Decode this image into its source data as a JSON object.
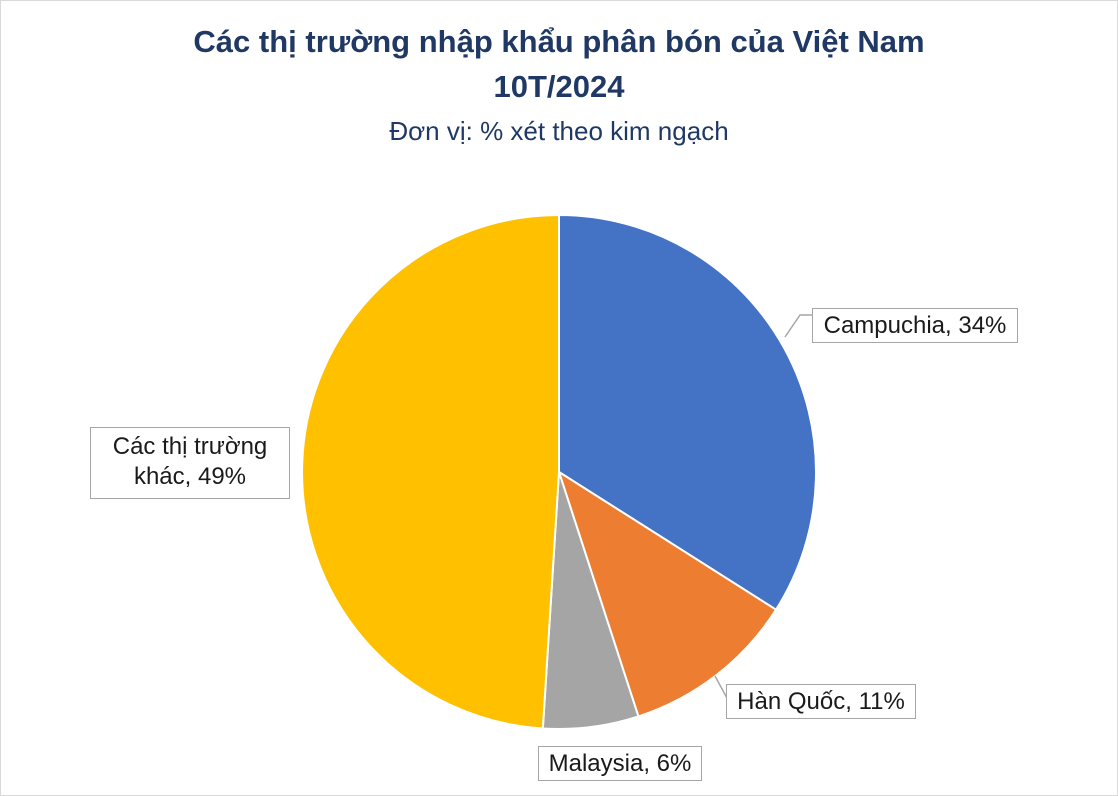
{
  "chart_data": {
    "type": "pie",
    "title_line1": "Các thị trường nhập khẩu phân bón của Việt Nam",
    "title_line2": "10T/2024",
    "subtitle": "Đơn vị: % xét theo kim ngạch",
    "slices": [
      {
        "name": "Campuchia",
        "value": 34,
        "color": "#4472c4",
        "label": "Campuchia, 34%"
      },
      {
        "name": "Hàn Quốc",
        "value": 11,
        "color": "#ed7d31",
        "label": "Hàn Quốc, 11%"
      },
      {
        "name": "Malaysia",
        "value": 6,
        "color": "#a5a5a5",
        "label": "Malaysia, 6%"
      },
      {
        "name": "Các thị trường khác",
        "value": 49,
        "color": "#ffc000",
        "label_line1": "Các thị trường",
        "label_line2": "khác, 49%"
      }
    ]
  }
}
